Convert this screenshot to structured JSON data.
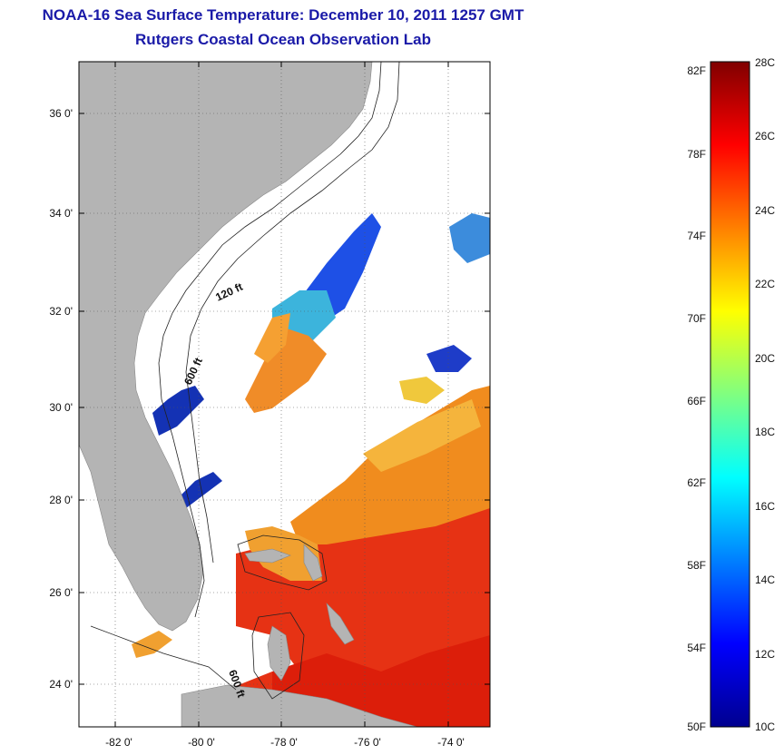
{
  "title": "NOAA-16 Sea Surface Temperature:  December 10, 2011 1257 GMT",
  "subtitle": "Rutgers Coastal Ocean Observation Lab",
  "map": {
    "lat_labels": [
      "24 0'",
      "26 0'",
      "28 0'",
      "30 0'",
      "32 0'",
      "34 0'",
      "36 0'"
    ],
    "lon_labels": [
      "-82 0'",
      "-80 0'",
      "-78 0'",
      "-76 0'",
      "-74 0'"
    ],
    "contour_labels": [
      "120 ft",
      "600 ft",
      "600 ft"
    ],
    "colors": {
      "land": "#b4b4b4",
      "ocean_nodata": "#ffffff",
      "grid": "#555555"
    }
  },
  "colorbar": {
    "fahrenheit": [
      "50F",
      "54F",
      "58F",
      "62F",
      "66F",
      "70F",
      "74F",
      "78F",
      "82F"
    ],
    "celsius": [
      "10C",
      "12C",
      "14C",
      "16C",
      "18C",
      "20C",
      "22C",
      "24C",
      "26C",
      "28C"
    ],
    "colormap": [
      "#00008f",
      "#0000ff",
      "#0080ff",
      "#00ffff",
      "#80ff80",
      "#ffff00",
      "#ff8000",
      "#ff0000",
      "#800000"
    ]
  }
}
